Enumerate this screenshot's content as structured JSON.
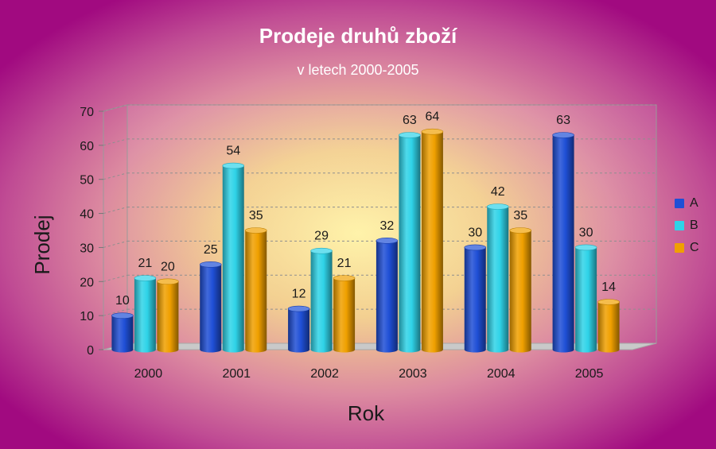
{
  "chart_data": {
    "type": "bar",
    "title": "Prodeje druhů zboží",
    "subtitle": "v letech 2000-2005",
    "xlabel": "Rok",
    "ylabel": "Prodej",
    "categories": [
      "2000",
      "2001",
      "2002",
      "2003",
      "2004",
      "2005"
    ],
    "series": [
      {
        "name": "A",
        "values": [
          10,
          25,
          12,
          32,
          30,
          63
        ],
        "color": "#1f4fd6"
      },
      {
        "name": "B",
        "values": [
          21,
          54,
          29,
          63,
          42,
          30
        ],
        "color": "#2fd3e8"
      },
      {
        "name": "C",
        "values": [
          20,
          35,
          21,
          64,
          35,
          14
        ],
        "color": "#f0a000"
      }
    ],
    "ylim": [
      0,
      70
    ],
    "yticks": [
      "0",
      "10",
      "20",
      "30",
      "40",
      "50",
      "60",
      "70"
    ],
    "grid": true,
    "legend_position": "right",
    "style": "3d-cylinder"
  }
}
